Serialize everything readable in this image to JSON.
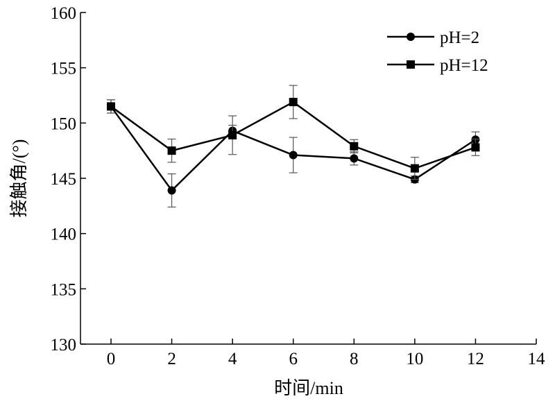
{
  "chart_data": {
    "type": "line",
    "title": "",
    "xlabel": "时间/min",
    "ylabel": "接触角/(°)",
    "xlim": [
      -1,
      14
    ],
    "ylim": [
      130,
      160
    ],
    "xticks": [
      0,
      2,
      4,
      6,
      8,
      10,
      12,
      14
    ],
    "yticks": [
      130,
      135,
      140,
      145,
      150,
      155,
      160
    ],
    "grid": false,
    "legend_position": "top-right",
    "x": [
      0,
      2,
      4,
      6,
      8,
      10,
      12
    ],
    "series": [
      {
        "name": "pH=2",
        "marker": "circle",
        "values": [
          151.5,
          143.9,
          149.3,
          147.1,
          146.8,
          144.9,
          148.5
        ],
        "errors": [
          0.6,
          1.5,
          0.5,
          1.6,
          0.6,
          0.3,
          0.7
        ]
      },
      {
        "name": "pH=12",
        "marker": "square",
        "values": [
          151.5,
          147.5,
          148.9,
          151.9,
          147.9,
          145.9,
          147.8
        ],
        "errors": [
          0.6,
          1.05,
          1.75,
          1.5,
          0.6,
          1.0,
          0.75
        ]
      }
    ]
  }
}
